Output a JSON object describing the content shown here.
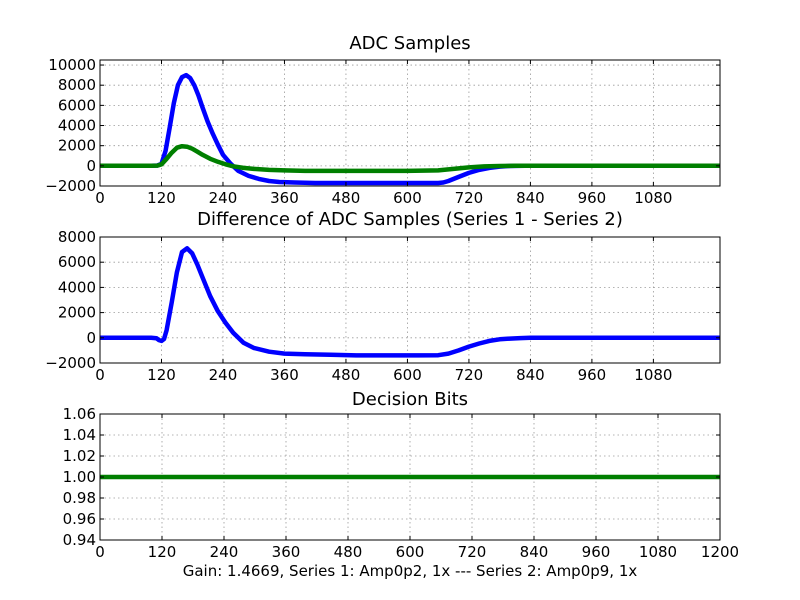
{
  "footer": "Gain: 1.4669, Series 1: Amp0p2, 1x --- Series 2: Amp0p9, 1x",
  "colors": {
    "series_1": "#0000ff",
    "series_2": "#007f00",
    "background": "#ffffff"
  },
  "chart_data": [
    {
      "type": "line",
      "title": "ADC Samples",
      "xlabel": "",
      "ylabel": "",
      "xlim": [
        0,
        1210
      ],
      "ylim": [
        -2000,
        10500
      ],
      "grid": true,
      "xticks": [
        0,
        120,
        240,
        360,
        480,
        600,
        720,
        840,
        960,
        1080
      ],
      "xtick_labels": [
        "0",
        "120",
        "240",
        "360",
        "480",
        "600",
        "720",
        "840",
        "960",
        "1080"
      ],
      "yticks": [
        -2000,
        0,
        2000,
        4000,
        6000,
        8000,
        10000
      ],
      "ytick_labels": [
        "−2000",
        "0",
        "2000",
        "4000",
        "6000",
        "8000",
        "10000"
      ],
      "series": [
        {
          "color": "#0000ff",
          "x": [
            0,
            100,
            112,
            120,
            128,
            136,
            144,
            152,
            160,
            168,
            176,
            184,
            192,
            200,
            210,
            220,
            230,
            240,
            255,
            270,
            290,
            310,
            330,
            350,
            380,
            420,
            480,
            540,
            600,
            640,
            660,
            670,
            680,
            700,
            720,
            740,
            760,
            780,
            800,
            830
          ],
          "y": [
            0,
            0,
            30,
            200,
            1500,
            3800,
            6200,
            8000,
            8800,
            9000,
            8700,
            8000,
            7000,
            5800,
            4400,
            3200,
            2100,
            1100,
            200,
            -500,
            -1000,
            -1300,
            -1500,
            -1600,
            -1650,
            -1700,
            -1700,
            -1700,
            -1700,
            -1700,
            -1700,
            -1650,
            -1500,
            -1100,
            -700,
            -400,
            -200,
            -80,
            -20,
            0
          ]
        },
        {
          "color": "#007f00",
          "x": [
            0,
            100,
            112,
            120,
            130,
            140,
            150,
            160,
            170,
            180,
            190,
            200,
            215,
            230,
            245,
            260,
            280,
            300,
            330,
            360,
            400,
            480,
            600,
            660,
            680,
            700,
            720,
            750,
            780,
            810,
            840,
            1210
          ],
          "y": [
            0,
            0,
            20,
            150,
            700,
            1300,
            1800,
            1950,
            1900,
            1700,
            1400,
            1100,
            700,
            400,
            150,
            -50,
            -200,
            -300,
            -400,
            -450,
            -500,
            -500,
            -500,
            -450,
            -350,
            -250,
            -150,
            -60,
            -20,
            0,
            0,
            0
          ]
        }
      ]
    },
    {
      "type": "line",
      "title": "Difference of ADC Samples (Series 1 - Series 2)",
      "xlabel": "",
      "ylabel": "",
      "xlim": [
        0,
        1210
      ],
      "ylim": [
        -2000,
        8000
      ],
      "grid": true,
      "xticks": [
        0,
        120,
        240,
        360,
        480,
        600,
        720,
        840,
        960,
        1080
      ],
      "xtick_labels": [
        "0",
        "120",
        "240",
        "360",
        "480",
        "600",
        "720",
        "840",
        "960",
        "1080"
      ],
      "yticks": [
        -2000,
        0,
        2000,
        4000,
        6000,
        8000
      ],
      "ytick_labels": [
        "−2000",
        "0",
        "2000",
        "4000",
        "6000",
        "8000"
      ],
      "series": [
        {
          "color": "#0000ff",
          "x": [
            0,
            100,
            110,
            115,
            120,
            125,
            130,
            140,
            150,
            160,
            170,
            180,
            190,
            200,
            215,
            230,
            245,
            260,
            280,
            300,
            330,
            360,
            400,
            450,
            500,
            560,
            620,
            660,
            680,
            700,
            720,
            740,
            760,
            780,
            800,
            820,
            840,
            1210
          ],
          "y": [
            0,
            0,
            -30,
            -180,
            -250,
            -100,
            600,
            2800,
            5200,
            6800,
            7100,
            6700,
            5800,
            4800,
            3300,
            2100,
            1200,
            400,
            -400,
            -800,
            -1100,
            -1250,
            -1300,
            -1350,
            -1400,
            -1400,
            -1400,
            -1380,
            -1250,
            -1000,
            -700,
            -450,
            -250,
            -120,
            -60,
            -20,
            0,
            0
          ]
        }
      ]
    },
    {
      "type": "line",
      "title": "Decision Bits",
      "xlabel": "",
      "ylabel": "",
      "xlim": [
        0,
        1200
      ],
      "ylim": [
        0.94,
        1.06
      ],
      "grid": true,
      "xticks": [
        0,
        120,
        240,
        360,
        480,
        600,
        720,
        840,
        960,
        1080,
        1200
      ],
      "xtick_labels": [
        "0",
        "120",
        "240",
        "360",
        "480",
        "600",
        "720",
        "840",
        "960",
        "1080",
        "1200"
      ],
      "yticks": [
        0.94,
        0.96,
        0.98,
        1.0,
        1.02,
        1.04,
        1.06
      ],
      "ytick_labels": [
        "0.94",
        "0.96",
        "0.98",
        "1.00",
        "1.02",
        "1.04",
        "1.06"
      ],
      "series": [
        {
          "color": "#007f00",
          "x": [
            0,
            1200
          ],
          "y": [
            1.0,
            1.0
          ]
        }
      ]
    }
  ]
}
